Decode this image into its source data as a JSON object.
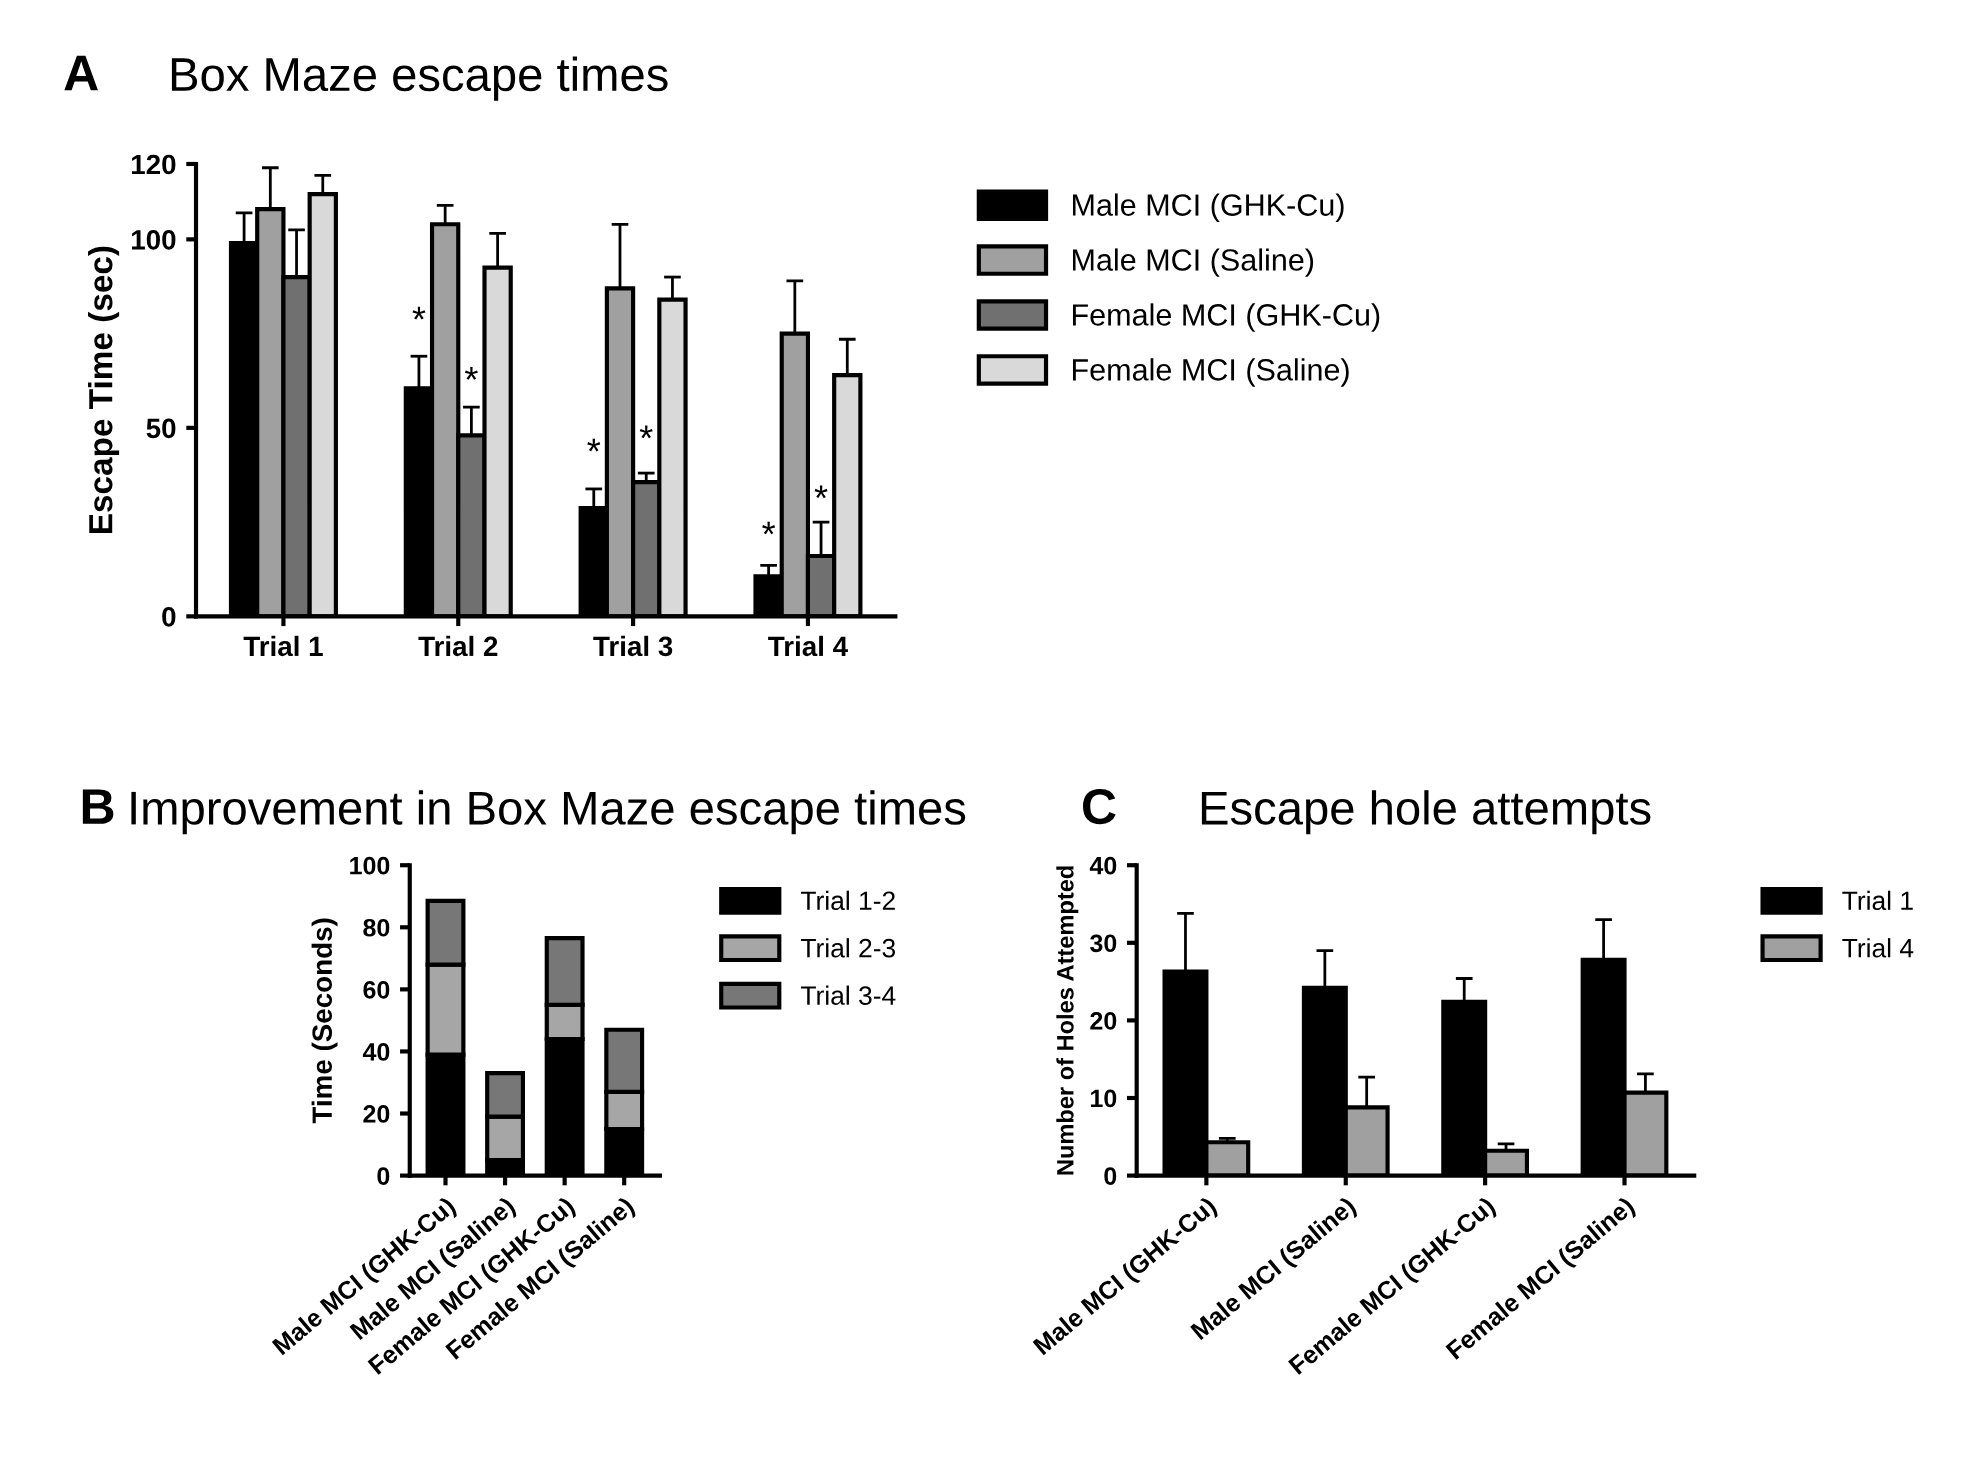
{
  "chart_data": [
    {
      "type": "bar",
      "title": "Box Maze escape times",
      "ylabel": "Escape Time (sec)",
      "categories": [
        "Trial 1",
        "Trial 2",
        "Trial 3",
        "Trial 4"
      ],
      "series": [
        {
          "name": "Male MCI (GHK-Cu)",
          "color": "#000000",
          "values": [
            99,
            60.5,
            28.7,
            10.6
          ],
          "errors": [
            [
              99,
              107
            ],
            [
              60.5,
              69
            ],
            [
              28.7,
              33.8
            ],
            [
              10.6,
              13.5
            ]
          ]
        },
        {
          "name": "Male MCI (Saline)",
          "color": "#a0a0a0",
          "values": [
            108,
            104,
            87,
            75
          ],
          "errors": [
            [
              108,
              119
            ],
            [
              104,
              109
            ],
            [
              87,
              104
            ],
            [
              75,
              89
            ]
          ]
        },
        {
          "name": "Female MCI (GHK-Cu)",
          "color": "#707070",
          "values": [
            90,
            48,
            35.6,
            16
          ],
          "errors": [
            [
              90,
              102.5
            ],
            [
              48,
              55.5
            ],
            [
              35.6,
              38
            ],
            [
              16,
              25
            ]
          ]
        },
        {
          "name": "Female MCI (Saline)",
          "color": "#d9d9d9",
          "values": [
            112,
            92.5,
            84,
            64
          ],
          "errors": [
            [
              112,
              117
            ],
            [
              92.5,
              101.6
            ],
            [
              84,
              90
            ],
            [
              64,
              73.5
            ]
          ]
        }
      ],
      "ylim": [
        0,
        120
      ],
      "yticks": [
        0,
        50,
        100,
        120
      ],
      "grid": false,
      "legend": "right",
      "annotations": [
        "A",
        {
          "text": "*",
          "x": "Trial 2",
          "y": 78
        },
        {
          "text": "*",
          "x": "Trial 2",
          "y": 62
        },
        {
          "text": "*",
          "x": "Trial 3",
          "y": 43
        },
        {
          "text": "*",
          "x": "Trial 3",
          "y": 46.5
        },
        {
          "text": "*",
          "x": "Trial 4",
          "y": 21
        },
        {
          "text": "*",
          "x": "Trial 4",
          "y": 30.6
        }
      ]
    },
    {
      "type": "bar",
      "stacked": true,
      "title": "Improvement in Box Maze escape times",
      "ylabel": "Time (Seconds)",
      "categories": [
        "Male MCI (GHK-Cu)",
        "Male MCI (Saline)",
        "Female MCI (GHK-Cu)",
        "Female MCI (Saline)"
      ],
      "series": [
        {
          "name": "Trial 1-2",
          "color": "#000000",
          "values": [
            39,
            5,
            44,
            15
          ]
        },
        {
          "name": "Trial 2-3",
          "color": "#a6a6a6",
          "values": [
            29,
            14,
            11,
            12
          ]
        },
        {
          "name": "Trial 3-4",
          "color": "#777777",
          "values": [
            20.5,
            14,
            21.5,
            20
          ]
        }
      ],
      "ylim": [
        0,
        100
      ],
      "yticks": [
        0,
        20,
        40,
        60,
        80,
        100
      ],
      "grid": false,
      "legend": "right",
      "annotations": [
        "B"
      ]
    },
    {
      "type": "bar",
      "title": "Escape hole attempts",
      "ylabel": "Number of Holes Attempted",
      "categories": [
        "Male MCI (GHK-Cu)",
        "Male MCI (Saline)",
        "Female MCI (GHK-Cu)",
        "Female MCI (Saline)"
      ],
      "series": [
        {
          "name": "Trial 1",
          "color": "#000000",
          "values": [
            26.3,
            24.2,
            22.4,
            27.8
          ],
          "errors": [
            [
              26.3,
              33.8
            ],
            [
              24.2,
              29
            ],
            [
              22.4,
              25.4
            ],
            [
              27.8,
              33
            ]
          ]
        },
        {
          "name": "Trial 4",
          "color": "#a0a0a0",
          "values": [
            4.3,
            8.8,
            3.2,
            10.7
          ],
          "errors": [
            [
              4.3,
              4.8
            ],
            [
              8.8,
              12.7
            ],
            [
              3.2,
              4.1
            ],
            [
              10.7,
              13.1
            ]
          ]
        }
      ],
      "ylim": [
        0,
        40
      ],
      "yticks": [
        0,
        10,
        20,
        30,
        40
      ],
      "grid": false,
      "legend": "right",
      "annotations": [
        "C"
      ]
    }
  ]
}
